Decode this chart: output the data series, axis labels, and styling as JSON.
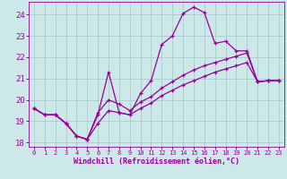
{
  "xlabel": "Windchill (Refroidissement éolien,°C)",
  "bg_color": "#cce8e8",
  "grid_color": "#aacccc",
  "line_color": "#990099",
  "xlim": [
    -0.5,
    23.5
  ],
  "ylim": [
    17.8,
    24.6
  ],
  "xticks": [
    0,
    1,
    2,
    3,
    4,
    5,
    6,
    7,
    8,
    9,
    10,
    11,
    12,
    13,
    14,
    15,
    16,
    17,
    18,
    19,
    20,
    21,
    22,
    23
  ],
  "yticks": [
    18,
    19,
    20,
    21,
    22,
    23,
    24
  ],
  "curve1_x": [
    0,
    1,
    2,
    3,
    4,
    5,
    6,
    7,
    8,
    9,
    10,
    11,
    12,
    13,
    14,
    15,
    16,
    17,
    18,
    19,
    20,
    21,
    22,
    23
  ],
  "curve1_y": [
    19.6,
    19.3,
    19.3,
    18.9,
    18.3,
    18.15,
    19.3,
    21.3,
    19.4,
    19.3,
    20.3,
    20.9,
    22.6,
    23.0,
    24.05,
    24.35,
    24.1,
    22.65,
    22.75,
    22.3,
    22.3,
    20.85,
    20.9,
    20.9
  ],
  "curve2_x": [
    0,
    1,
    2,
    3,
    4,
    5,
    6,
    7,
    8,
    9,
    10,
    11,
    12,
    13,
    14,
    15,
    16,
    17,
    18,
    19,
    20,
    21,
    22,
    23
  ],
  "curve2_y": [
    19.6,
    19.3,
    19.3,
    18.9,
    18.3,
    18.15,
    19.4,
    20.0,
    19.8,
    19.5,
    19.9,
    20.15,
    20.55,
    20.85,
    21.15,
    21.4,
    21.6,
    21.75,
    21.9,
    22.05,
    22.2,
    20.85,
    20.9,
    20.9
  ],
  "curve3_x": [
    0,
    1,
    2,
    3,
    4,
    5,
    6,
    7,
    8,
    9,
    10,
    11,
    12,
    13,
    14,
    15,
    16,
    17,
    18,
    19,
    20,
    21,
    22,
    23
  ],
  "curve3_y": [
    19.6,
    19.3,
    19.3,
    18.9,
    18.3,
    18.15,
    18.9,
    19.5,
    19.4,
    19.3,
    19.6,
    19.85,
    20.2,
    20.45,
    20.7,
    20.9,
    21.1,
    21.3,
    21.45,
    21.6,
    21.75,
    20.85,
    20.9,
    20.9
  ]
}
